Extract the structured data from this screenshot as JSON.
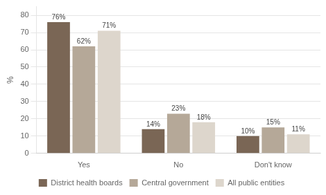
{
  "chart_data": {
    "type": "bar",
    "categories": [
      "Yes",
      "No",
      "Don't know"
    ],
    "series": [
      {
        "name": "District health boards",
        "color": "#7a6655",
        "values": [
          76,
          14,
          10
        ],
        "value_labels": [
          "76%",
          "14%",
          "10%"
        ]
      },
      {
        "name": "Central government",
        "color": "#b5a898",
        "values": [
          62,
          23,
          15
        ],
        "value_labels": [
          "62%",
          "23%",
          "15%"
        ]
      },
      {
        "name": "All public entities",
        "color": "#ddd6cc",
        "values": [
          71,
          18,
          11
        ],
        "value_labels": [
          "71%",
          "18%",
          "11%"
        ]
      }
    ],
    "ylabel": "%",
    "ylim": [
      0,
      85
    ],
    "yticks": [
      0,
      10,
      20,
      30,
      40,
      50,
      60,
      70,
      80
    ],
    "grid": true,
    "data_labels": true,
    "legend": "bottom"
  }
}
